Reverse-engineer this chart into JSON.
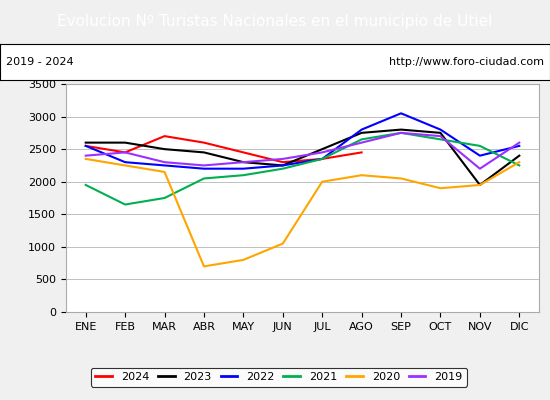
{
  "title": "Evolucion Nº Turistas Nacionales en el municipio de Utiel",
  "subtitle_left": "2019 - 2024",
  "subtitle_right": "http://www.foro-ciudad.com",
  "title_bg_color": "#4472c4",
  "title_fg_color": "#ffffff",
  "months": [
    "ENE",
    "FEB",
    "MAR",
    "ABR",
    "MAY",
    "JUN",
    "JUL",
    "AGO",
    "SEP",
    "OCT",
    "NOV",
    "DIC"
  ],
  "ylim": [
    0,
    3500
  ],
  "yticks": [
    0,
    500,
    1000,
    1500,
    2000,
    2500,
    3000,
    3500
  ],
  "series": {
    "2024": {
      "color": "#ff0000",
      "data": [
        2550,
        2450,
        2700,
        2600,
        2450,
        2300,
        2350,
        2450,
        null,
        null,
        null,
        null
      ]
    },
    "2023": {
      "color": "#000000",
      "data": [
        2600,
        2600,
        2500,
        2450,
        2300,
        2250,
        2500,
        2750,
        2800,
        2750,
        1950,
        2400
      ]
    },
    "2022": {
      "color": "#0000ff",
      "data": [
        2550,
        2300,
        2250,
        2200,
        2200,
        2250,
        2350,
        2800,
        3050,
        2800,
        2400,
        2550
      ]
    },
    "2021": {
      "color": "#00b050",
      "data": [
        1950,
        1650,
        1750,
        2050,
        2100,
        2200,
        2350,
        2650,
        2750,
        2650,
        2550,
        2250
      ]
    },
    "2020": {
      "color": "#ffa500",
      "data": [
        2350,
        2250,
        2150,
        700,
        800,
        1050,
        2000,
        2100,
        2050,
        1900,
        1950,
        2300
      ]
    },
    "2019": {
      "color": "#9b30ff",
      "data": [
        2400,
        2450,
        2300,
        2250,
        2300,
        2350,
        2450,
        2600,
        2750,
        2700,
        2200,
        2600
      ]
    }
  },
  "legend_order": [
    "2024",
    "2023",
    "2022",
    "2021",
    "2020",
    "2019"
  ],
  "bg_color": "#f0f0f0",
  "plot_bg_color": "#ffffff",
  "grid_color": "#c0c0c0",
  "border_color": "#000080"
}
